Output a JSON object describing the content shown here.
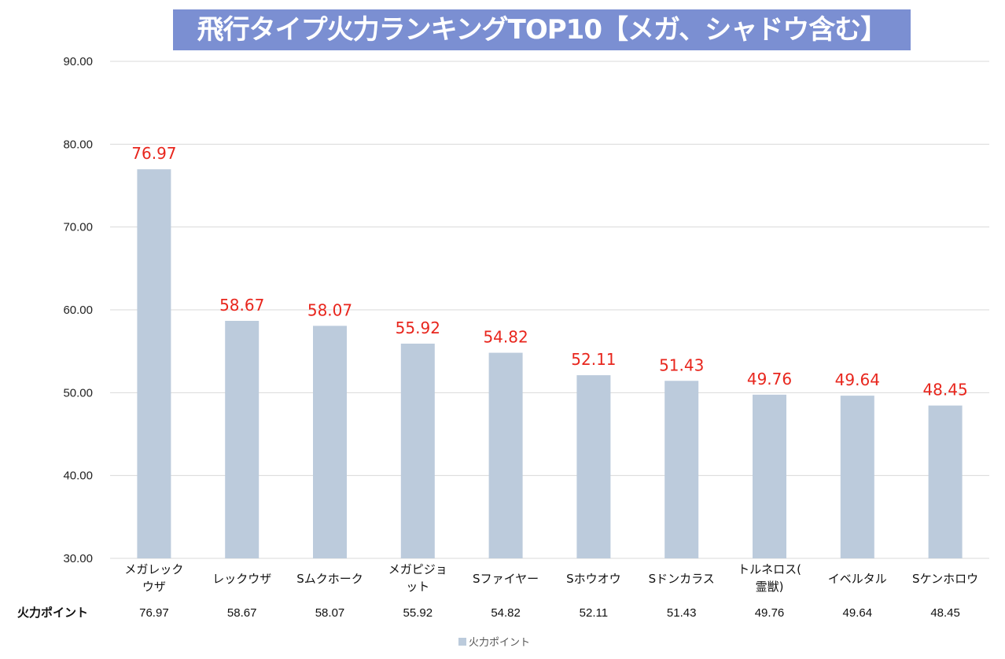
{
  "chart_data": {
    "type": "bar",
    "title": "飛行タイプ火力ランキングTOP10【メガ、シャドウ含む】",
    "categories": [
      [
        "メガレック",
        "ウザ"
      ],
      [
        "レックウザ"
      ],
      [
        "Sムクホーク"
      ],
      [
        "メガピジョ",
        "ット"
      ],
      [
        "Sファイヤー"
      ],
      [
        "Sホウオウ"
      ],
      [
        "Sドンカラス"
      ],
      [
        "トルネロス(",
        "霊獣)"
      ],
      [
        "イベルタル"
      ],
      [
        "Sケンホロウ"
      ]
    ],
    "series": [
      {
        "name": "火力ポイント",
        "values": [
          76.97,
          58.67,
          58.07,
          55.92,
          54.82,
          52.11,
          51.43,
          49.76,
          49.64,
          48.45
        ],
        "value_labels": [
          "76.97",
          "58.67",
          "58.07",
          "55.92",
          "54.82",
          "52.11",
          "51.43",
          "49.76",
          "49.64",
          "48.45"
        ]
      }
    ],
    "ylim": [
      30,
      90
    ],
    "yticks": [
      "30.00",
      "40.00",
      "50.00",
      "60.00",
      "70.00",
      "80.00",
      "90.00"
    ],
    "ytick_values": [
      30,
      40,
      50,
      60,
      70,
      80,
      90
    ],
    "grid": true,
    "legend_position": "bottom",
    "data_table": true,
    "colors": {
      "bar": "#bccbdc",
      "data_label": "#e8261d",
      "title_background": "#7b8fd2",
      "gridline": "#d9d9d9"
    }
  }
}
